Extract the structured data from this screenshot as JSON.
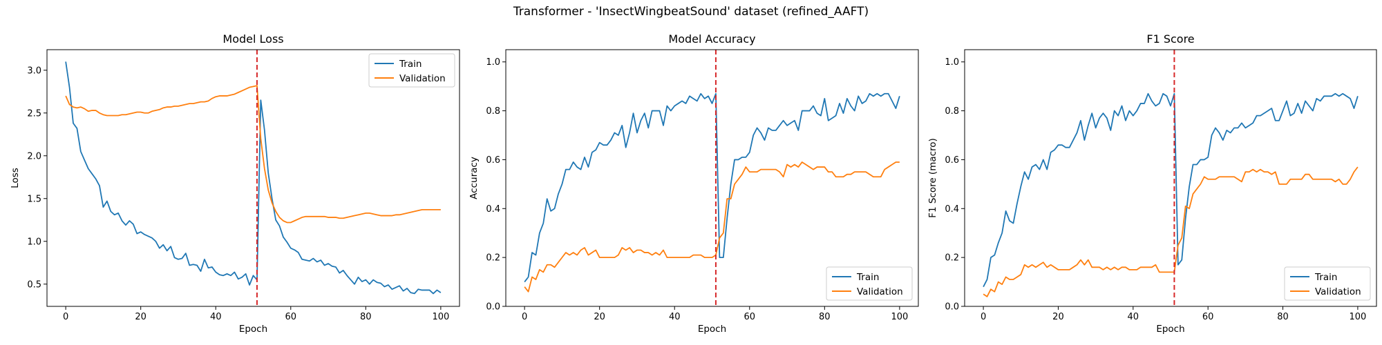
{
  "suptitle": "Transformer - 'InsectWingbeatSound' dataset (refined_AAFT)",
  "colors": {
    "train": "#1f77b4",
    "validation": "#ff7f0e",
    "divider": "#d62728"
  },
  "chart_data": [
    {
      "type": "line",
      "title": "Model Loss",
      "xlabel": "Epoch",
      "ylabel": "Loss",
      "xlim": [
        -5,
        105
      ],
      "ylim": [
        0.24,
        3.24
      ],
      "xticks": [
        0,
        20,
        40,
        60,
        80,
        100
      ],
      "yticks": [
        0.5,
        1.0,
        1.5,
        2.0,
        2.5,
        3.0
      ],
      "ytick_labels": [
        "0.5",
        "1.0",
        "1.5",
        "2.0",
        "2.5",
        "3.0"
      ],
      "xtick_labels": [
        "0",
        "20",
        "40",
        "60",
        "80",
        "100"
      ],
      "vline_x": 51,
      "legend": "upper right",
      "legend_entries": [
        "Train",
        "Validation"
      ],
      "x": [
        0,
        1,
        2,
        3,
        4,
        5,
        6,
        7,
        8,
        9,
        10,
        11,
        12,
        13,
        14,
        15,
        16,
        17,
        18,
        19,
        20,
        21,
        22,
        23,
        24,
        25,
        26,
        27,
        28,
        29,
        30,
        31,
        32,
        33,
        34,
        35,
        36,
        37,
        38,
        39,
        40,
        41,
        42,
        43,
        44,
        45,
        46,
        47,
        48,
        49,
        50,
        51,
        52,
        53,
        54,
        55,
        56,
        57,
        58,
        59,
        60,
        61,
        62,
        63,
        64,
        65,
        66,
        67,
        68,
        69,
        70,
        71,
        72,
        73,
        74,
        75,
        76,
        77,
        78,
        79,
        80,
        81,
        82,
        83,
        84,
        85,
        86,
        87,
        88,
        89,
        90,
        91,
        92,
        93,
        94,
        95,
        96,
        97,
        98,
        99,
        100
      ],
      "series": [
        {
          "name": "Train",
          "values": [
            3.1,
            2.8,
            2.38,
            2.32,
            2.05,
            1.95,
            1.85,
            1.79,
            1.73,
            1.65,
            1.4,
            1.47,
            1.35,
            1.31,
            1.33,
            1.24,
            1.19,
            1.24,
            1.2,
            1.09,
            1.11,
            1.08,
            1.06,
            1.04,
            1.0,
            0.92,
            0.96,
            0.89,
            0.94,
            0.81,
            0.79,
            0.8,
            0.86,
            0.72,
            0.73,
            0.72,
            0.65,
            0.79,
            0.69,
            0.7,
            0.64,
            0.61,
            0.6,
            0.62,
            0.6,
            0.64,
            0.56,
            0.58,
            0.62,
            0.49,
            0.6,
            0.55,
            2.65,
            2.3,
            1.8,
            1.5,
            1.25,
            1.18,
            1.05,
            0.99,
            0.92,
            0.9,
            0.87,
            0.79,
            0.78,
            0.77,
            0.8,
            0.76,
            0.78,
            0.72,
            0.74,
            0.71,
            0.7,
            0.63,
            0.66,
            0.6,
            0.55,
            0.5,
            0.58,
            0.53,
            0.55,
            0.5,
            0.55,
            0.52,
            0.51,
            0.47,
            0.49,
            0.44,
            0.46,
            0.48,
            0.42,
            0.45,
            0.4,
            0.39,
            0.44,
            0.43,
            0.43,
            0.43,
            0.39,
            0.43,
            0.4
          ]
        },
        {
          "name": "Validation",
          "values": [
            2.7,
            2.6,
            2.57,
            2.56,
            2.57,
            2.55,
            2.52,
            2.53,
            2.53,
            2.5,
            2.48,
            2.47,
            2.47,
            2.47,
            2.47,
            2.48,
            2.48,
            2.49,
            2.5,
            2.51,
            2.51,
            2.5,
            2.5,
            2.52,
            2.53,
            2.54,
            2.56,
            2.57,
            2.57,
            2.58,
            2.58,
            2.59,
            2.6,
            2.61,
            2.61,
            2.62,
            2.63,
            2.63,
            2.64,
            2.67,
            2.69,
            2.7,
            2.7,
            2.7,
            2.71,
            2.72,
            2.74,
            2.76,
            2.78,
            2.8,
            2.81,
            2.82,
            2.2,
            1.85,
            1.6,
            1.45,
            1.35,
            1.28,
            1.24,
            1.22,
            1.22,
            1.24,
            1.26,
            1.28,
            1.29,
            1.29,
            1.29,
            1.29,
            1.29,
            1.29,
            1.28,
            1.28,
            1.28,
            1.27,
            1.27,
            1.28,
            1.29,
            1.3,
            1.31,
            1.32,
            1.33,
            1.33,
            1.32,
            1.31,
            1.3,
            1.3,
            1.3,
            1.3,
            1.31,
            1.31,
            1.32,
            1.33,
            1.34,
            1.35,
            1.36,
            1.37,
            1.37,
            1.37,
            1.37,
            1.37,
            1.37
          ]
        }
      ]
    },
    {
      "type": "line",
      "title": "Model Accuracy",
      "xlabel": "Epoch",
      "ylabel": "Accuracy",
      "xlim": [
        -5,
        105
      ],
      "ylim": [
        0,
        1.05
      ],
      "xticks": [
        0,
        20,
        40,
        60,
        80,
        100
      ],
      "yticks": [
        0.0,
        0.2,
        0.4,
        0.6,
        0.8,
        1.0
      ],
      "ytick_labels": [
        "0.0",
        "0.2",
        "0.4",
        "0.6",
        "0.8",
        "1.0"
      ],
      "xtick_labels": [
        "0",
        "20",
        "40",
        "60",
        "80",
        "100"
      ],
      "vline_x": 51,
      "legend": "lower right",
      "legend_entries": [
        "Train",
        "Validation"
      ],
      "x": [
        0,
        1,
        2,
        3,
        4,
        5,
        6,
        7,
        8,
        9,
        10,
        11,
        12,
        13,
        14,
        15,
        16,
        17,
        18,
        19,
        20,
        21,
        22,
        23,
        24,
        25,
        26,
        27,
        28,
        29,
        30,
        31,
        32,
        33,
        34,
        35,
        36,
        37,
        38,
        39,
        40,
        41,
        42,
        43,
        44,
        45,
        46,
        47,
        48,
        49,
        50,
        51,
        52,
        53,
        54,
        55,
        56,
        57,
        58,
        59,
        60,
        61,
        62,
        63,
        64,
        65,
        66,
        67,
        68,
        69,
        70,
        71,
        72,
        73,
        74,
        75,
        76,
        77,
        78,
        79,
        80,
        81,
        82,
        83,
        84,
        85,
        86,
        87,
        88,
        89,
        90,
        91,
        92,
        93,
        94,
        95,
        96,
        97,
        98,
        99,
        100
      ],
      "series": [
        {
          "name": "Train",
          "values": [
            0.1,
            0.12,
            0.22,
            0.21,
            0.3,
            0.34,
            0.44,
            0.39,
            0.4,
            0.46,
            0.5,
            0.56,
            0.56,
            0.59,
            0.57,
            0.56,
            0.61,
            0.57,
            0.63,
            0.64,
            0.67,
            0.66,
            0.66,
            0.68,
            0.71,
            0.7,
            0.74,
            0.65,
            0.71,
            0.79,
            0.71,
            0.76,
            0.79,
            0.73,
            0.8,
            0.8,
            0.8,
            0.74,
            0.82,
            0.8,
            0.82,
            0.83,
            0.84,
            0.83,
            0.86,
            0.85,
            0.84,
            0.87,
            0.85,
            0.86,
            0.83,
            0.87,
            0.2,
            0.2,
            0.36,
            0.5,
            0.6,
            0.6,
            0.61,
            0.61,
            0.63,
            0.7,
            0.73,
            0.71,
            0.68,
            0.73,
            0.72,
            0.72,
            0.74,
            0.76,
            0.74,
            0.75,
            0.76,
            0.72,
            0.8,
            0.8,
            0.8,
            0.82,
            0.79,
            0.78,
            0.85,
            0.76,
            0.77,
            0.78,
            0.83,
            0.79,
            0.85,
            0.82,
            0.8,
            0.86,
            0.83,
            0.84,
            0.87,
            0.86,
            0.87,
            0.86,
            0.87,
            0.87,
            0.84,
            0.81,
            0.86
          ]
        },
        {
          "name": "Validation",
          "values": [
            0.08,
            0.06,
            0.12,
            0.11,
            0.15,
            0.14,
            0.17,
            0.17,
            0.16,
            0.18,
            0.2,
            0.22,
            0.21,
            0.22,
            0.21,
            0.23,
            0.24,
            0.21,
            0.22,
            0.23,
            0.2,
            0.2,
            0.2,
            0.2,
            0.2,
            0.21,
            0.24,
            0.23,
            0.24,
            0.22,
            0.23,
            0.23,
            0.22,
            0.22,
            0.21,
            0.22,
            0.21,
            0.23,
            0.2,
            0.2,
            0.2,
            0.2,
            0.2,
            0.2,
            0.2,
            0.21,
            0.21,
            0.21,
            0.2,
            0.2,
            0.2,
            0.21,
            0.28,
            0.3,
            0.44,
            0.44,
            0.5,
            0.52,
            0.54,
            0.57,
            0.55,
            0.55,
            0.55,
            0.56,
            0.56,
            0.56,
            0.56,
            0.56,
            0.55,
            0.53,
            0.58,
            0.57,
            0.58,
            0.57,
            0.59,
            0.58,
            0.57,
            0.56,
            0.57,
            0.57,
            0.57,
            0.55,
            0.55,
            0.53,
            0.53,
            0.53,
            0.54,
            0.54,
            0.55,
            0.55,
            0.55,
            0.55,
            0.54,
            0.53,
            0.53,
            0.53,
            0.56,
            0.57,
            0.58,
            0.59,
            0.59
          ]
        }
      ]
    },
    {
      "type": "line",
      "title": "F1 Score",
      "xlabel": "Epoch",
      "ylabel": "F1 Score (macro)",
      "xlim": [
        -5,
        105
      ],
      "ylim": [
        0,
        1.05
      ],
      "xticks": [
        0,
        20,
        40,
        60,
        80,
        100
      ],
      "yticks": [
        0.0,
        0.2,
        0.4,
        0.6,
        0.8,
        1.0
      ],
      "ytick_labels": [
        "0.0",
        "0.2",
        "0.4",
        "0.6",
        "0.8",
        "1.0"
      ],
      "xtick_labels": [
        "0",
        "20",
        "40",
        "60",
        "80",
        "100"
      ],
      "vline_x": 51,
      "legend": "lower right",
      "legend_entries": [
        "Train",
        "Validation"
      ],
      "x": [
        0,
        1,
        2,
        3,
        4,
        5,
        6,
        7,
        8,
        9,
        10,
        11,
        12,
        13,
        14,
        15,
        16,
        17,
        18,
        19,
        20,
        21,
        22,
        23,
        24,
        25,
        26,
        27,
        28,
        29,
        30,
        31,
        32,
        33,
        34,
        35,
        36,
        37,
        38,
        39,
        40,
        41,
        42,
        43,
        44,
        45,
        46,
        47,
        48,
        49,
        50,
        51,
        52,
        53,
        54,
        55,
        56,
        57,
        58,
        59,
        60,
        61,
        62,
        63,
        64,
        65,
        66,
        67,
        68,
        69,
        70,
        71,
        72,
        73,
        74,
        75,
        76,
        77,
        78,
        79,
        80,
        81,
        82,
        83,
        84,
        85,
        86,
        87,
        88,
        89,
        90,
        91,
        92,
        93,
        94,
        95,
        96,
        97,
        98,
        99,
        100
      ],
      "series": [
        {
          "name": "Train",
          "values": [
            0.08,
            0.11,
            0.2,
            0.21,
            0.26,
            0.3,
            0.39,
            0.35,
            0.34,
            0.42,
            0.49,
            0.55,
            0.52,
            0.57,
            0.58,
            0.56,
            0.6,
            0.56,
            0.63,
            0.64,
            0.66,
            0.66,
            0.65,
            0.65,
            0.68,
            0.71,
            0.76,
            0.68,
            0.74,
            0.79,
            0.73,
            0.77,
            0.79,
            0.77,
            0.72,
            0.8,
            0.78,
            0.82,
            0.76,
            0.8,
            0.78,
            0.8,
            0.83,
            0.83,
            0.87,
            0.84,
            0.82,
            0.83,
            0.87,
            0.86,
            0.82,
            0.87,
            0.17,
            0.19,
            0.36,
            0.49,
            0.58,
            0.58,
            0.6,
            0.6,
            0.61,
            0.7,
            0.73,
            0.71,
            0.68,
            0.72,
            0.71,
            0.73,
            0.73,
            0.75,
            0.73,
            0.74,
            0.75,
            0.78,
            0.78,
            0.79,
            0.8,
            0.81,
            0.76,
            0.76,
            0.8,
            0.84,
            0.78,
            0.79,
            0.83,
            0.79,
            0.84,
            0.82,
            0.8,
            0.85,
            0.84,
            0.86,
            0.86,
            0.86,
            0.87,
            0.86,
            0.87,
            0.86,
            0.85,
            0.81,
            0.86
          ]
        },
        {
          "name": "Validation",
          "values": [
            0.05,
            0.04,
            0.07,
            0.06,
            0.1,
            0.09,
            0.12,
            0.11,
            0.11,
            0.12,
            0.13,
            0.17,
            0.16,
            0.17,
            0.16,
            0.17,
            0.18,
            0.16,
            0.17,
            0.16,
            0.15,
            0.15,
            0.15,
            0.15,
            0.16,
            0.17,
            0.19,
            0.17,
            0.19,
            0.16,
            0.16,
            0.16,
            0.15,
            0.16,
            0.15,
            0.16,
            0.15,
            0.16,
            0.16,
            0.15,
            0.15,
            0.15,
            0.16,
            0.16,
            0.16,
            0.16,
            0.17,
            0.14,
            0.14,
            0.14,
            0.14,
            0.14,
            0.25,
            0.28,
            0.41,
            0.4,
            0.46,
            0.48,
            0.5,
            0.53,
            0.52,
            0.52,
            0.52,
            0.53,
            0.53,
            0.53,
            0.53,
            0.53,
            0.52,
            0.51,
            0.55,
            0.55,
            0.56,
            0.55,
            0.56,
            0.55,
            0.55,
            0.54,
            0.55,
            0.5,
            0.5,
            0.5,
            0.52,
            0.52,
            0.52,
            0.52,
            0.54,
            0.54,
            0.52,
            0.52,
            0.52,
            0.52,
            0.52,
            0.52,
            0.51,
            0.52,
            0.5,
            0.5,
            0.52,
            0.55,
            0.57
          ]
        }
      ]
    }
  ]
}
